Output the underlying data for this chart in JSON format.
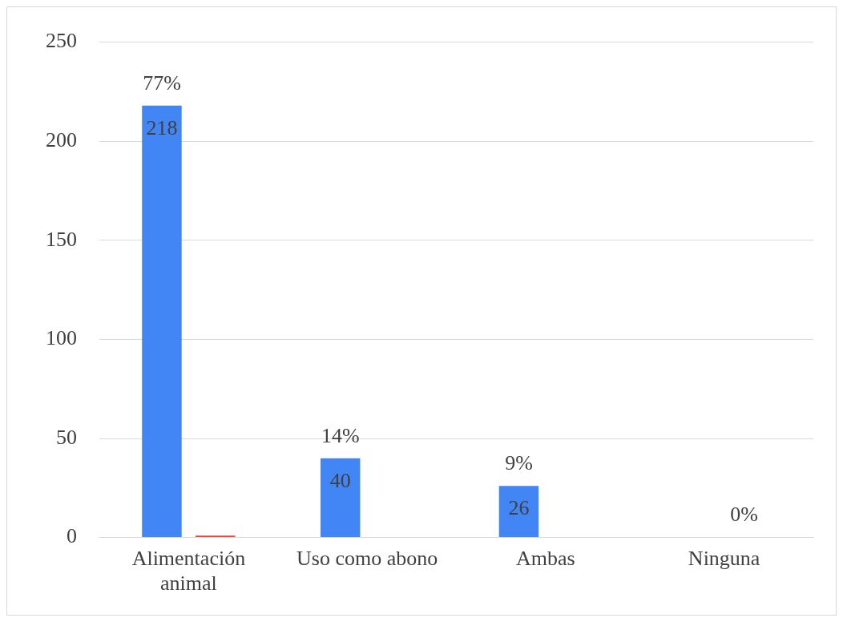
{
  "chart_data": {
    "type": "bar",
    "categories": [
      "Alimentación animal",
      "Uso como abono",
      "Ambas",
      "Ninguna"
    ],
    "series": [
      {
        "color": "#4285f4",
        "values": [
          218,
          40,
          26,
          0
        ],
        "value_labels": [
          "218",
          "40",
          "26",
          null
        ]
      },
      {
        "color": "#ea4335",
        "values": [
          1,
          0,
          0,
          0
        ]
      }
    ],
    "annotations": [
      "77%",
      "14%",
      "9%",
      "0%"
    ],
    "ylim": [
      0,
      250
    ],
    "yticks": [
      0,
      50,
      100,
      150,
      200,
      250
    ],
    "grid": "y",
    "legend": false
  }
}
